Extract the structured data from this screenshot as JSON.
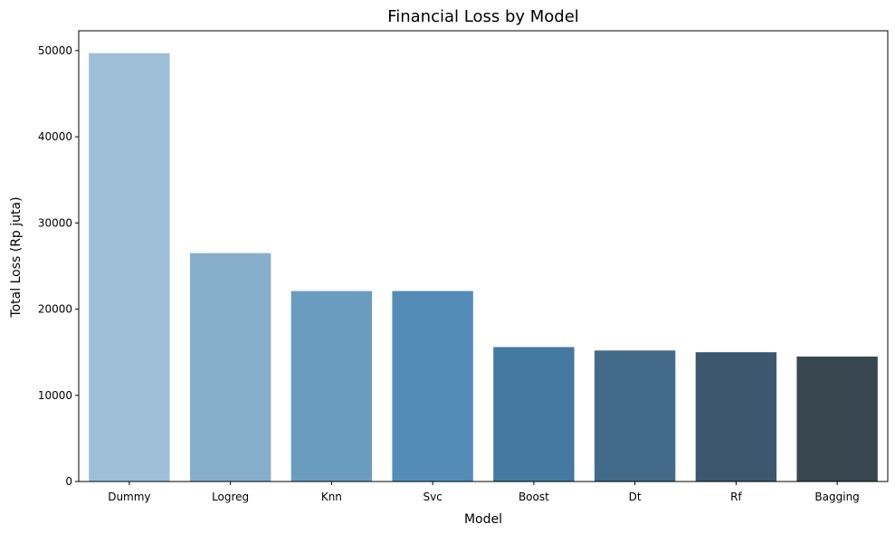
{
  "chart_data": {
    "type": "bar",
    "title": "Financial Loss by Model",
    "xlabel": "Model",
    "ylabel": "Total Loss (Rp juta)",
    "categories": [
      "Dummy",
      "Logreg",
      "Knn",
      "Svc",
      "Boost",
      "Dt",
      "Rf",
      "Bagging"
    ],
    "values": [
      49700,
      26500,
      22100,
      22100,
      15600,
      15200,
      15000,
      14500
    ],
    "colors": [
      "#9ebfd7",
      "#87aecb",
      "#6a9cbf",
      "#538cb7",
      "#447aa1",
      "#426a89",
      "#3d576e",
      "#384750"
    ],
    "ylim": [
      0,
      52300
    ],
    "yticks": [
      0,
      10000,
      20000,
      30000,
      40000,
      50000
    ],
    "grid": false,
    "legend": "none"
  }
}
